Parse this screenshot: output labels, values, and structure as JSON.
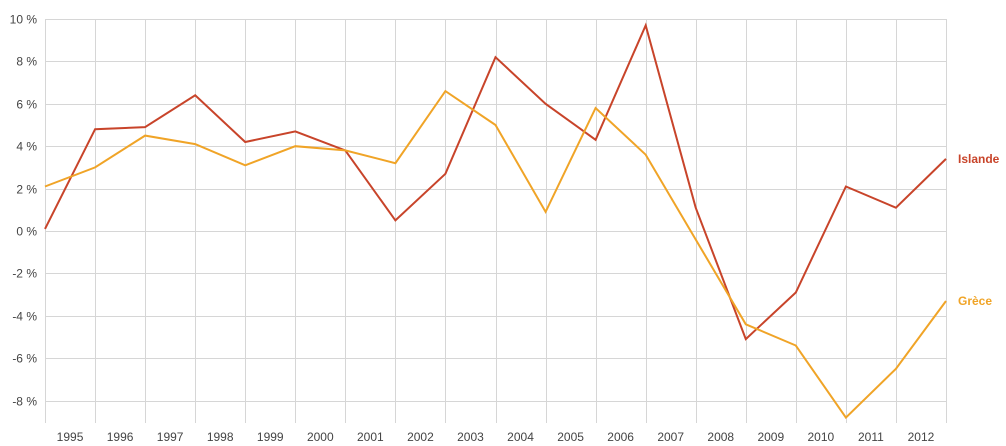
{
  "chart_data": {
    "type": "line",
    "categories": [
      "1995",
      "1996",
      "1997",
      "1998",
      "1999",
      "2000",
      "2001",
      "2002",
      "2003",
      "2004",
      "2005",
      "2006",
      "2007",
      "2008",
      "2009",
      "2010",
      "2011",
      "2012"
    ],
    "x": [
      1994.5,
      1995.5,
      1996.5,
      1997.5,
      1998.5,
      1999.5,
      2000.5,
      2001.5,
      2002.5,
      2003.5,
      2004.5,
      2005.5,
      2006.5,
      2007.5,
      2008.5,
      2009.5,
      2010.5,
      2011.5,
      2012.5
    ],
    "series": [
      {
        "name": "Islande",
        "color": "#c8442a",
        "values": [
          0.1,
          4.8,
          4.9,
          6.4,
          4.2,
          4.7,
          3.8,
          0.5,
          2.7,
          8.2,
          6.0,
          4.3,
          9.7,
          1.1,
          -5.1,
          -2.9,
          2.1,
          1.1,
          3.4
        ]
      },
      {
        "name": "Grèce",
        "color": "#f0a427",
        "values": [
          2.1,
          3.0,
          4.5,
          4.1,
          3.1,
          4.0,
          3.8,
          3.2,
          6.6,
          5.0,
          0.9,
          5.8,
          3.6,
          -0.4,
          -4.4,
          -5.4,
          -8.8,
          -6.5,
          -3.3
        ]
      }
    ],
    "yticks": [
      10,
      8,
      6,
      4,
      2,
      0,
      -2,
      -4,
      -6,
      -8
    ],
    "ytick_labels": [
      "10 %",
      "8 %",
      "6 %",
      "4 %",
      "2 %",
      "0 %",
      "-2 %",
      "-4 %",
      "-6 %",
      "-8 %"
    ],
    "ylim": [
      -9,
      10
    ],
    "xlim": [
      1994.5,
      2012.5
    ],
    "grid": true,
    "legend": "end-of-line labels on the right"
  }
}
